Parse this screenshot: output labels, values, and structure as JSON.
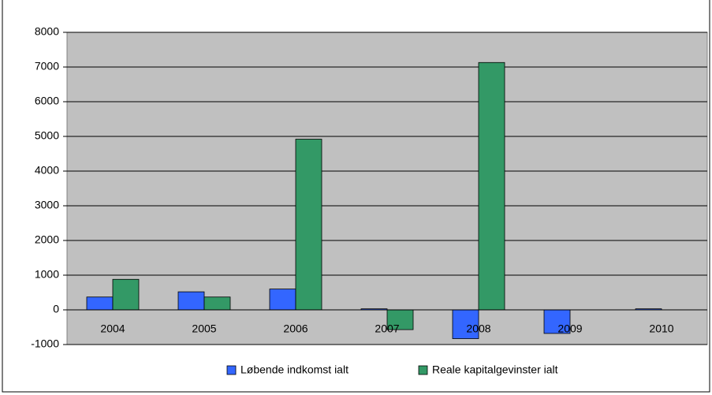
{
  "chart_data": {
    "type": "bar",
    "categories": [
      "2004",
      "2005",
      "2006",
      "2007",
      "2008",
      "2009",
      "2010"
    ],
    "series": [
      {
        "name": "Løbende indkomst ialt",
        "color": "#3366ff",
        "values": [
          370,
          520,
          600,
          30,
          -830,
          -680,
          30
        ]
      },
      {
        "name": "Reale kapitalgevinster ialt",
        "color": "#339966",
        "values": [
          880,
          370,
          4920,
          -570,
          7130,
          0,
          0
        ]
      }
    ],
    "ylim": [
      -1000,
      8000
    ],
    "yticks": [
      -1000,
      0,
      1000,
      2000,
      3000,
      4000,
      5000,
      6000,
      7000,
      8000
    ],
    "grid": true,
    "legend": "bottom"
  }
}
